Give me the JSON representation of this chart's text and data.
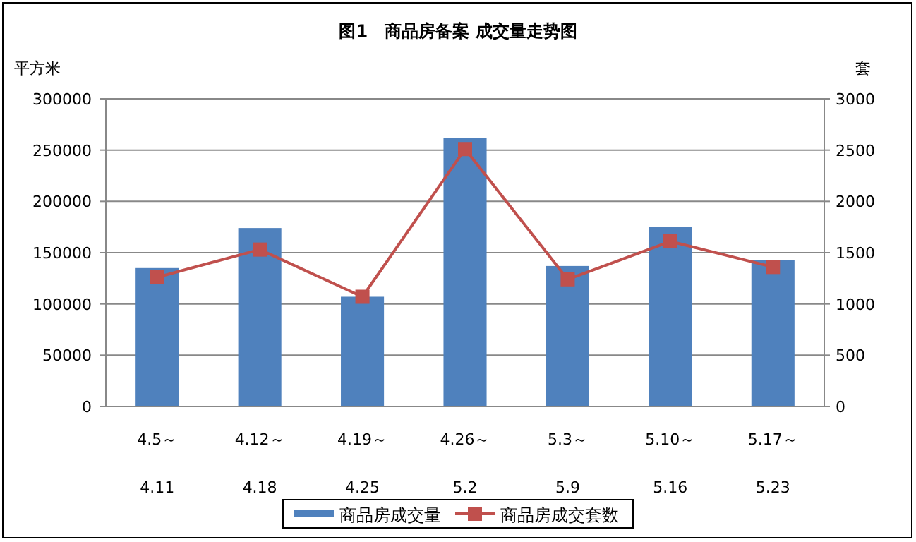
{
  "chart_data": {
    "type": "bar",
    "title": "图1　商品房备案 成交量走势图",
    "ylabel": "平方米",
    "y2label": "套",
    "categories": [
      "4.5～\n4.11",
      "4.12～\n4.18",
      "4.19～\n4.25",
      "4.26～\n5.2",
      "5.3～\n5.9",
      "5.10～\n5.16",
      "5.17～\n5.23"
    ],
    "series": [
      {
        "name": "商品房成交量",
        "color": "#4f81bd",
        "values": [
          135000,
          174000,
          107000,
          262000,
          137000,
          175000,
          143000
        ]
      },
      {
        "name": "商品房成交套数",
        "type": "line",
        "axis": "y2",
        "color": "#c0504d",
        "marker": "square",
        "values": [
          1260,
          1530,
          1070,
          2510,
          1240,
          1610,
          1360
        ]
      }
    ],
    "ylim": [
      0,
      300000
    ],
    "yticks": [
      0,
      50000,
      100000,
      150000,
      200000,
      250000,
      300000
    ],
    "y2lim": [
      0,
      3000
    ],
    "y2ticks": [
      0,
      500,
      1000,
      1500,
      2000,
      2500,
      3000
    ],
    "grid": "y",
    "legend": "bottom"
  }
}
